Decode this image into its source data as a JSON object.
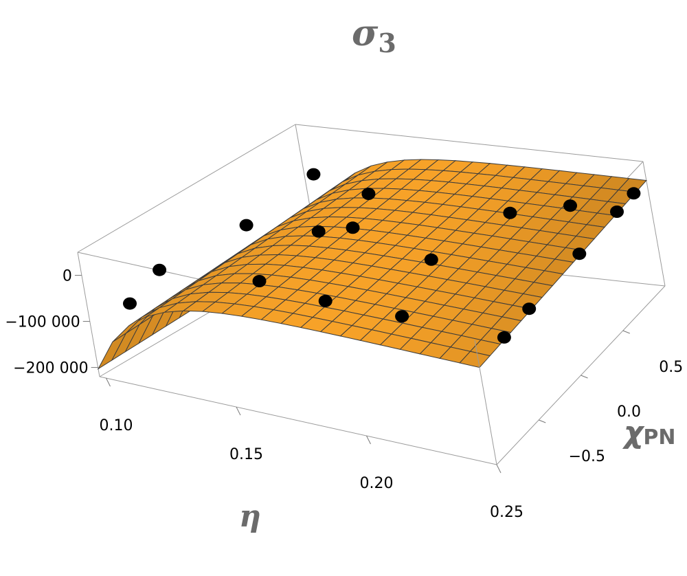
{
  "chart_data": {
    "type": "surface3d",
    "title": "σ",
    "title_subscript": "3",
    "xlabel": "η",
    "ylabel": "χ",
    "ylabel_subscript": "PN",
    "xlim": [
      0.0975,
      0.25
    ],
    "ylim": [
      -1,
      1
    ],
    "zlim": [
      -220000,
      50000
    ],
    "x_ticks": [
      {
        "value": 0.1,
        "label": "0.10"
      },
      {
        "value": 0.15,
        "label": "0.15"
      },
      {
        "value": 0.2,
        "label": "0.20"
      },
      {
        "value": 0.25,
        "label": "0.25"
      }
    ],
    "y_ticks": [
      {
        "value": -0.5,
        "label": "−0.5"
      },
      {
        "value": 0.0,
        "label": "0.0"
      },
      {
        "value": 0.5,
        "label": "0.5"
      }
    ],
    "z_ticks": [
      {
        "value": 0,
        "label": "0"
      },
      {
        "value": -100000,
        "label": "−100 000"
      },
      {
        "value": -200000,
        "label": "−200 000"
      }
    ],
    "surface_color": "#f7a21c",
    "mesh_color": "#3b3b3b",
    "point_color": "#000000",
    "points": [
      {
        "eta": 0.11,
        "chi": -0.9,
        "sigma3": -60000
      },
      {
        "eta": 0.11,
        "chi": -0.6,
        "sigma3": -30000
      },
      {
        "eta": 0.12,
        "chi": 0.0,
        "sigma3": -10000
      },
      {
        "eta": 0.12,
        "chi": 0.65,
        "sigma3": 5000
      },
      {
        "eta": 0.15,
        "chi": -0.6,
        "sigma3": -10000
      },
      {
        "eta": 0.15,
        "chi": 0.0,
        "sigma3": 3000
      },
      {
        "eta": 0.15,
        "chi": 0.5,
        "sigma3": 6000
      },
      {
        "eta": 0.16,
        "chi": 0.1,
        "sigma3": 4000
      },
      {
        "eta": 0.18,
        "chi": -0.7,
        "sigma3": -3000
      },
      {
        "eta": 0.21,
        "chi": -0.7,
        "sigma3": -2000
      },
      {
        "eta": 0.2,
        "chi": -0.1,
        "sigma3": 4000
      },
      {
        "eta": 0.21,
        "chi": 0.5,
        "sigma3": 7000
      },
      {
        "eta": 0.23,
        "chi": 0.65,
        "sigma3": 9000
      },
      {
        "eta": 0.25,
        "chi": -0.7,
        "sigma3": -2000
      },
      {
        "eta": 0.25,
        "chi": -0.4,
        "sigma3": 2000
      },
      {
        "eta": 0.25,
        "chi": 0.2,
        "sigma3": 5000
      },
      {
        "eta": 0.25,
        "chi": 0.65,
        "sigma3": 9000
      },
      {
        "eta": 0.25,
        "chi": 0.85,
        "sigma3": 10000
      }
    ]
  }
}
